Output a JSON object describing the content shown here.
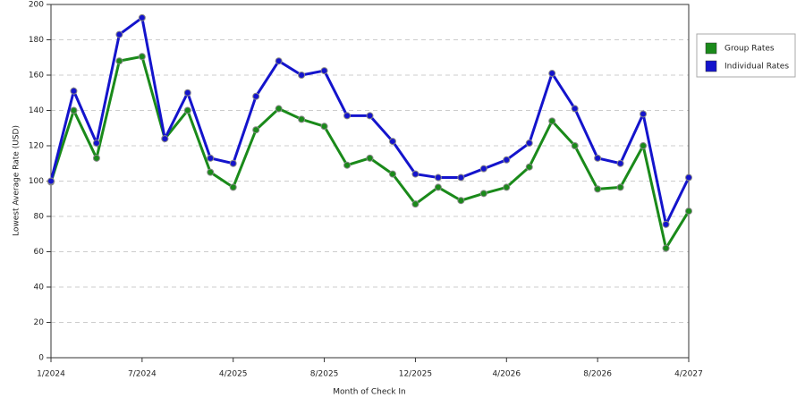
{
  "chart_data": {
    "type": "line",
    "x_label": "Month of Check In",
    "y_label": "Lowest Average Rate (USD)",
    "categories": [
      "1/2024",
      null,
      null,
      null,
      "7/2024",
      null,
      null,
      null,
      "4/2025",
      null,
      null,
      null,
      "8/2025",
      null,
      null,
      null,
      "12/2025",
      null,
      null,
      null,
      "4/2026",
      null,
      null,
      null,
      "8/2026",
      null,
      null,
      null,
      "4/2027"
    ],
    "series": [
      {
        "name": "Group Rates",
        "color": "#1a8a1a",
        "values": [
          99.5,
          140,
          113,
          168,
          170.5,
          124,
          140,
          105,
          96.5,
          129,
          141,
          135,
          131,
          109,
          113,
          104,
          87,
          96.5,
          89,
          93,
          96.5,
          108,
          134,
          120,
          95.5,
          96.5,
          120,
          62,
          83
        ]
      },
      {
        "name": "Individual Rates",
        "color": "#1414cc",
        "values": [
          100,
          151,
          121.5,
          183,
          192.5,
          124,
          150,
          113,
          110,
          148,
          168,
          160,
          162.5,
          137,
          137,
          122.5,
          104,
          102,
          102,
          107,
          112,
          121.5,
          161,
          141,
          113,
          110,
          138,
          75.5,
          102
        ]
      }
    ],
    "ylim": [
      0,
      200
    ],
    "yticks": [
      0,
      20,
      40,
      60,
      80,
      100,
      120,
      140,
      160,
      180,
      200
    ],
    "grid": true,
    "legend": "right"
  }
}
